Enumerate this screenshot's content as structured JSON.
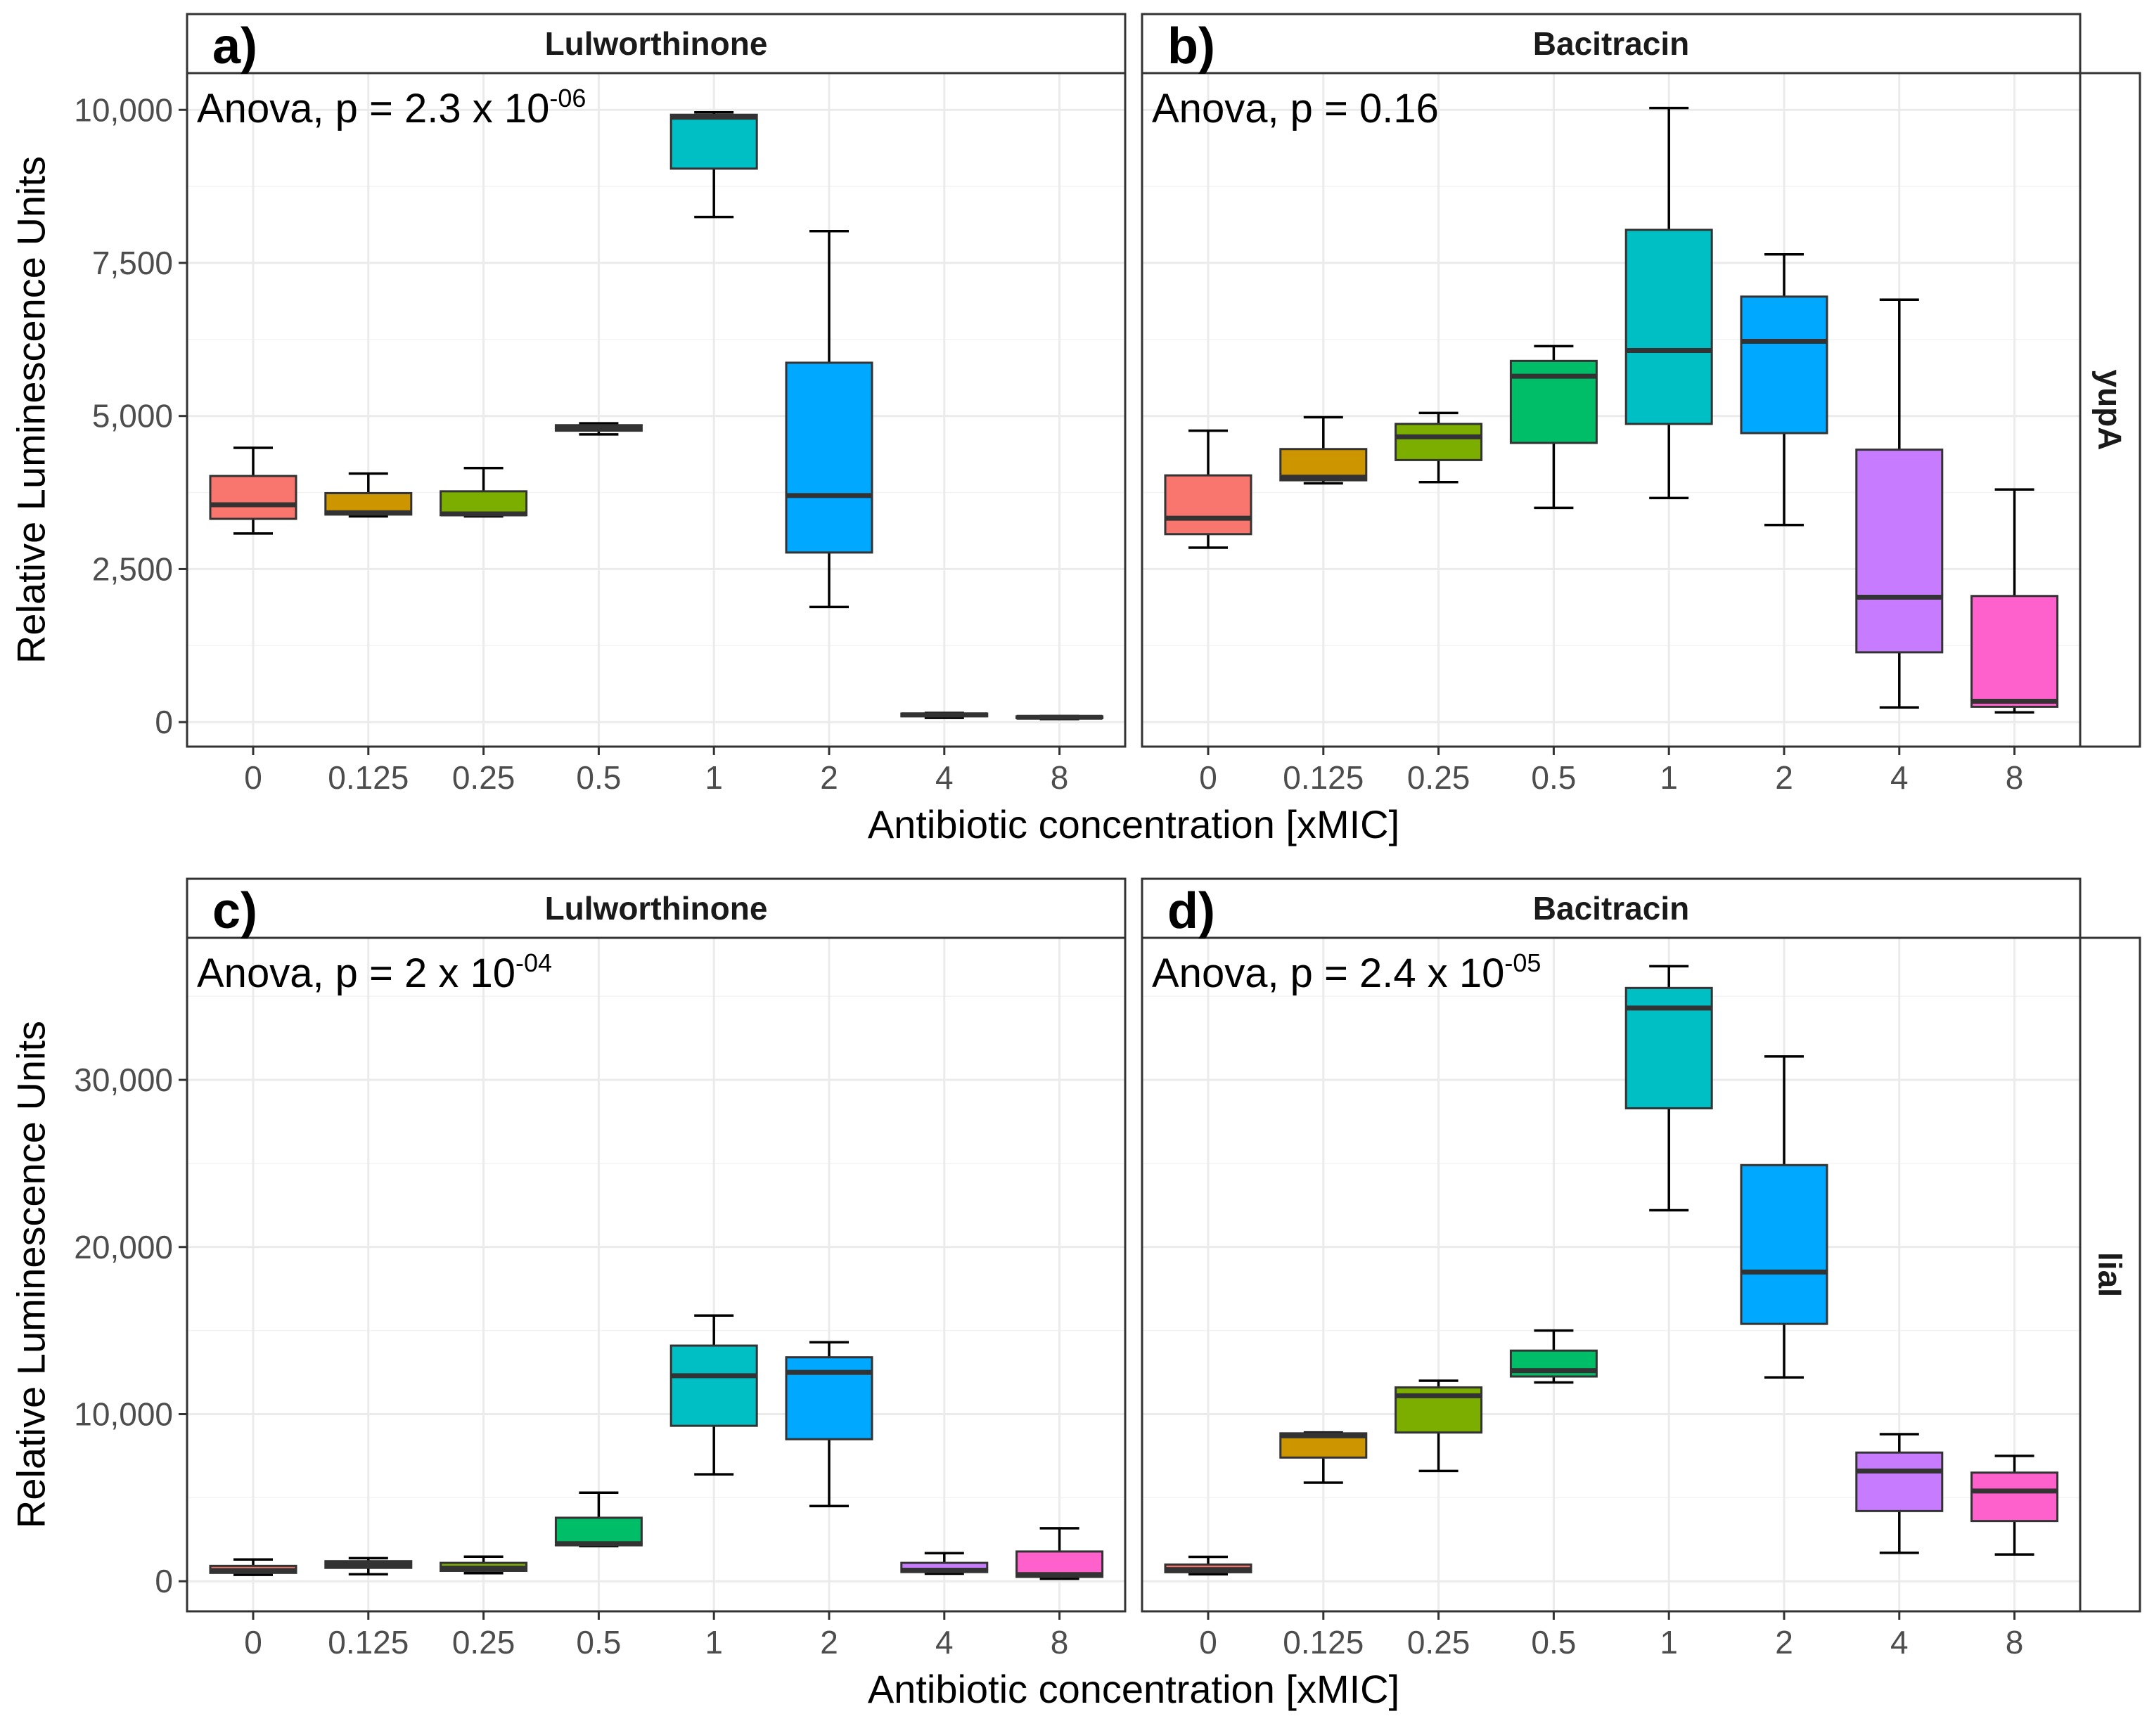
{
  "chart_data": {
    "type": "boxplot",
    "xlabel": "Antibiotic concentration [xMIC]",
    "ylabel": "Relative Luminescence Units",
    "categories": [
      "0",
      "0.125",
      "0.25",
      "0.5",
      "1",
      "2",
      "4",
      "8"
    ],
    "colors": [
      "#F8766D",
      "#CD9600",
      "#7CAE00",
      "#00BE67",
      "#00BFC4",
      "#00A9FF",
      "#C77CFF",
      "#FF61CC"
    ],
    "rows": [
      {
        "label": "yupA",
        "ylim": [
          -400,
          10600
        ],
        "yticks": [
          0,
          2500,
          5000,
          7500,
          10000
        ],
        "ytick_labels": [
          "0",
          "2,500",
          "5,000",
          "7,500",
          "10,000"
        ]
      },
      {
        "label": "liaI",
        "ylim": [
          -1800,
          38500
        ],
        "yticks": [
          0,
          10000,
          20000,
          30000
        ],
        "ytick_labels": [
          "0",
          "10,000",
          "20,000",
          "30,000"
        ]
      }
    ],
    "panels": [
      {
        "letter": "a)",
        "title": "Lulworthinone",
        "row": 0,
        "col": 0,
        "anova": {
          "prefix": "Anova, p = 2.3 x 10",
          "exp": "-06"
        },
        "boxes": [
          {
            "min": 3080,
            "q1": 3320,
            "median": 3550,
            "q3": 4020,
            "max": 4480
          },
          {
            "min": 3360,
            "q1": 3390,
            "median": 3420,
            "q3": 3740,
            "max": 4060
          },
          {
            "min": 3360,
            "q1": 3380,
            "median": 3400,
            "q3": 3770,
            "max": 4150
          },
          {
            "min": 4700,
            "q1": 4760,
            "median": 4800,
            "q3": 4850,
            "max": 4880
          },
          {
            "min": 8250,
            "q1": 9040,
            "median": 9880,
            "q3": 9920,
            "max": 9960
          },
          {
            "min": 1880,
            "q1": 2770,
            "median": 3700,
            "q3": 5870,
            "max": 8020
          },
          {
            "min": 70,
            "q1": 95,
            "median": 120,
            "q3": 140,
            "max": 150
          },
          {
            "min": 50,
            "q1": 65,
            "median": 80,
            "q3": 95,
            "max": 100
          }
        ]
      },
      {
        "letter": "b)",
        "title": "Bacitracin",
        "row": 0,
        "col": 1,
        "anova": {
          "prefix": "Anova, p = 0.16",
          "exp": ""
        },
        "boxes": [
          {
            "min": 2850,
            "q1": 3070,
            "median": 3330,
            "q3": 4030,
            "max": 4760
          },
          {
            "min": 3900,
            "q1": 3950,
            "median": 4000,
            "q3": 4460,
            "max": 4980
          },
          {
            "min": 3920,
            "q1": 4280,
            "median": 4660,
            "q3": 4870,
            "max": 5050
          },
          {
            "min": 3500,
            "q1": 4560,
            "median": 5650,
            "q3": 5900,
            "max": 6140
          },
          {
            "min": 3660,
            "q1": 4870,
            "median": 6070,
            "q3": 8040,
            "max": 10030
          },
          {
            "min": 3220,
            "q1": 4720,
            "median": 6220,
            "q3": 6950,
            "max": 7640
          },
          {
            "min": 240,
            "q1": 1140,
            "median": 2040,
            "q3": 4450,
            "max": 6900
          },
          {
            "min": 160,
            "q1": 250,
            "median": 340,
            "q3": 2060,
            "max": 3800
          }
        ]
      },
      {
        "letter": "c)",
        "title": "Lulworthinone",
        "row": 1,
        "col": 0,
        "anova": {
          "prefix": "Anova, p = 2 x 10",
          "exp": "-04"
        },
        "boxes": [
          {
            "min": 380,
            "q1": 500,
            "median": 640,
            "q3": 920,
            "max": 1300
          },
          {
            "min": 420,
            "q1": 800,
            "median": 1000,
            "q3": 1200,
            "max": 1380
          },
          {
            "min": 480,
            "q1": 620,
            "median": 780,
            "q3": 1100,
            "max": 1470
          },
          {
            "min": 2100,
            "q1": 2150,
            "median": 2250,
            "q3": 3800,
            "max": 5300
          },
          {
            "min": 6400,
            "q1": 9300,
            "median": 12300,
            "q3": 14100,
            "max": 15900
          },
          {
            "min": 4500,
            "q1": 8500,
            "median": 12500,
            "q3": 13400,
            "max": 14300
          },
          {
            "min": 450,
            "q1": 550,
            "median": 660,
            "q3": 1100,
            "max": 1680
          },
          {
            "min": 150,
            "q1": 260,
            "median": 400,
            "q3": 1780,
            "max": 3170
          }
        ]
      },
      {
        "letter": "d)",
        "title": "Bacitracin",
        "row": 1,
        "col": 1,
        "anova": {
          "prefix": "Anova, p = 2.4 x 10",
          "exp": "-05"
        },
        "boxes": [
          {
            "min": 420,
            "q1": 540,
            "median": 700,
            "q3": 1000,
            "max": 1460
          },
          {
            "min": 5900,
            "q1": 7400,
            "median": 8700,
            "q3": 8850,
            "max": 8900
          },
          {
            "min": 6600,
            "q1": 8900,
            "median": 11100,
            "q3": 11600,
            "max": 12000
          },
          {
            "min": 11900,
            "q1": 12250,
            "median": 12600,
            "q3": 13800,
            "max": 15000
          },
          {
            "min": 22200,
            "q1": 28300,
            "median": 34300,
            "q3": 35500,
            "max": 36800
          },
          {
            "min": 12200,
            "q1": 15400,
            "median": 18500,
            "q3": 24900,
            "max": 31400
          },
          {
            "min": 1700,
            "q1": 4200,
            "median": 6600,
            "q3": 7700,
            "max": 8800
          },
          {
            "min": 1600,
            "q1": 3600,
            "median": 5400,
            "q3": 6500,
            "max": 7500
          }
        ]
      }
    ]
  }
}
